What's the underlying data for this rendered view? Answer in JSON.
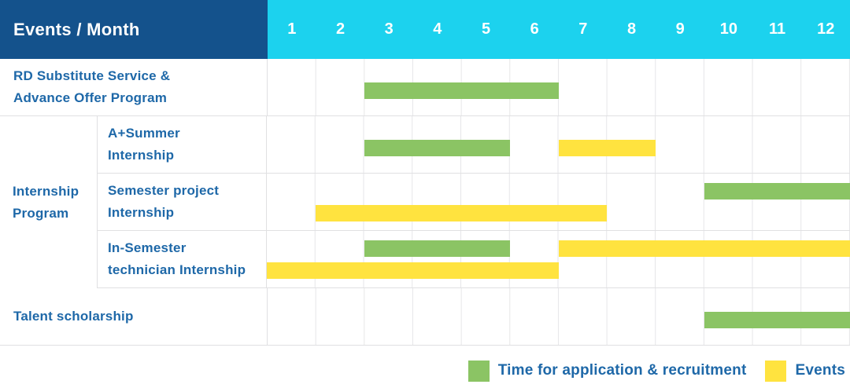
{
  "header": {
    "title": "Events / Month",
    "months": [
      "1",
      "2",
      "3",
      "4",
      "5",
      "6",
      "7",
      "8",
      "9",
      "10",
      "11",
      "12"
    ]
  },
  "colors": {
    "header_bg": "#14528C",
    "month_header_bg": "#1CD2EE",
    "header_text": "#FFFFFF",
    "label_text": "#1E68A8",
    "green": "#8BC464",
    "yellow": "#FFE33F",
    "grid_line": "#E6E6E8",
    "row_border": "#E0E0E2"
  },
  "group": {
    "label_lines": [
      "Internship",
      "Program"
    ]
  },
  "rows": [
    {
      "id": "rd-substitute-service",
      "label_lines": [
        "RD Substitute Service &",
        "Advance Offer Program"
      ],
      "bars": [
        {
          "color": "green",
          "start": 3,
          "end": 6,
          "lane": "single"
        }
      ]
    },
    {
      "id": "a-plus-summer-internship",
      "label_lines": [
        "A+Summer",
        "Internship"
      ],
      "bars": [
        {
          "color": "green",
          "start": 3,
          "end": 5,
          "lane": "single"
        },
        {
          "color": "yellow",
          "start": 7,
          "end": 8,
          "lane": "single"
        }
      ]
    },
    {
      "id": "semester-project-internship",
      "label_lines": [
        "Semester project",
        "Internship"
      ],
      "bars": [
        {
          "color": "green",
          "start": 10,
          "end": 12,
          "lane": "top"
        },
        {
          "color": "yellow",
          "start": 2,
          "end": 7,
          "lane": "bottom"
        }
      ]
    },
    {
      "id": "in-semester-technician-internship",
      "label_lines": [
        "In-Semester",
        "technician Internship"
      ],
      "bars": [
        {
          "color": "green",
          "start": 3,
          "end": 5,
          "lane": "top"
        },
        {
          "color": "yellow",
          "start": 7,
          "end": 12,
          "lane": "top"
        },
        {
          "color": "yellow",
          "start": 1,
          "end": 6,
          "lane": "bottom"
        }
      ]
    },
    {
      "id": "talent-scholarship",
      "label_lines": [
        "Talent scholarship"
      ],
      "bars": [
        {
          "color": "green",
          "start": 10,
          "end": 12,
          "lane": "single"
        }
      ]
    }
  ],
  "legend": {
    "items": [
      {
        "color": "green",
        "label": "Time for application & recruitment"
      },
      {
        "color": "yellow",
        "label": "Events"
      }
    ]
  },
  "chart_data": {
    "type": "bar",
    "subtype": "gantt-timeline",
    "title": "Events / Month",
    "xlabel": "Month",
    "x_ticks": [
      1,
      2,
      3,
      4,
      5,
      6,
      7,
      8,
      9,
      10,
      11,
      12
    ],
    "xlim": [
      1,
      12
    ],
    "grid": true,
    "legend_position": "bottom-right",
    "series_names": [
      "Time for application & recruitment",
      "Events"
    ],
    "series_colors": {
      "Time for application & recruitment": "#8BC464",
      "Events": "#FFE33F"
    },
    "rows": [
      {
        "category": "RD Substitute Service & Advance Offer Program",
        "group": null,
        "spans": [
          {
            "series": "Time for application & recruitment",
            "start_month": 3,
            "end_month": 6
          }
        ]
      },
      {
        "category": "A+Summer Internship",
        "group": "Internship Program",
        "spans": [
          {
            "series": "Time for application & recruitment",
            "start_month": 3,
            "end_month": 5
          },
          {
            "series": "Events",
            "start_month": 7,
            "end_month": 8
          }
        ]
      },
      {
        "category": "Semester project Internship",
        "group": "Internship Program",
        "spans": [
          {
            "series": "Time for application & recruitment",
            "start_month": 10,
            "end_month": 12
          },
          {
            "series": "Events",
            "start_month": 2,
            "end_month": 7
          }
        ]
      },
      {
        "category": "In-Semester technician Internship",
        "group": "Internship Program",
        "spans": [
          {
            "series": "Time for application & recruitment",
            "start_month": 3,
            "end_month": 5
          },
          {
            "series": "Events",
            "start_month": 7,
            "end_month": 12
          },
          {
            "series": "Events",
            "start_month": 1,
            "end_month": 6
          }
        ]
      },
      {
        "category": "Talent scholarship",
        "group": null,
        "spans": [
          {
            "series": "Time for application & recruitment",
            "start_month": 10,
            "end_month": 12
          }
        ]
      }
    ]
  }
}
